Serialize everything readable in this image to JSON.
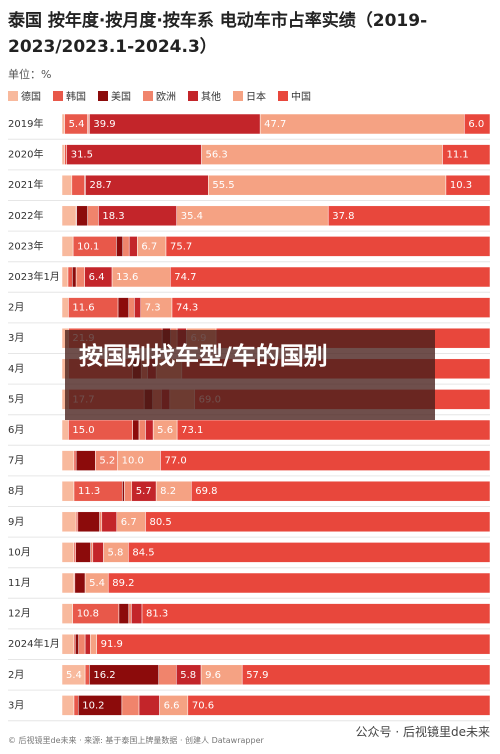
{
  "chart_data": {
    "type": "stacked-bar-100",
    "title": "泰国 按年度·按月度·按车系 电动车市占率实绩（2019-2023/2023.1-2024.3）",
    "subtitle": "单位：%",
    "categories": [
      "2019年",
      "2020年",
      "2021年",
      "2022年",
      "2023年",
      "2023年1月",
      "2月",
      "3月",
      "4月",
      "5月",
      "6月",
      "7月",
      "8月",
      "9月",
      "10月",
      "11月",
      "12月",
      "2024年1月",
      "2月",
      "3月"
    ],
    "series": [
      {
        "name": "德国",
        "color": "#f8b99d",
        "values": [
          0.6,
          0.6,
          2.3,
          3.3,
          2.6,
          1.4,
          1.5,
          1.5,
          1.5,
          1.5,
          1.5,
          2.8,
          2.8,
          3.3,
          2.8,
          2.8,
          2.5,
          2.8,
          5.4,
          2.8
        ],
        "value_labels": [
          null,
          null,
          null,
          null,
          null,
          null,
          null,
          null,
          null,
          null,
          null,
          null,
          null,
          null,
          null,
          null,
          null,
          null,
          "5.4",
          null
        ]
      },
      {
        "name": "韩国",
        "color": "#e8584a",
        "values": [
          5.4,
          0.5,
          3.0,
          0.1,
          10.1,
          1.0,
          11.6,
          21.9,
          15.0,
          17.7,
          15.0,
          0.5,
          11.3,
          0.4,
          0.4,
          0.2,
          10.8,
          0.3,
          1.0,
          1.0
        ],
        "value_labels": [
          "5.4",
          null,
          null,
          null,
          "10.1",
          null,
          "11.6",
          "21.9",
          null,
          "17.7",
          "15.0",
          null,
          "11.3",
          null,
          null,
          null,
          "10.8",
          null,
          null,
          null
        ]
      },
      {
        "name": "美国",
        "color": "#8c0b0b",
        "values": [
          0.1,
          0,
          0.2,
          2.6,
          1.5,
          0.9,
          2.5,
          2.0,
          2.0,
          2.0,
          1.5,
          4.5,
          0.5,
          5.1,
          3.5,
          2.4,
          2.3,
          0.8,
          16.2,
          10.2
        ],
        "value_labels": [
          null,
          null,
          null,
          null,
          null,
          null,
          null,
          null,
          null,
          null,
          null,
          null,
          null,
          null,
          null,
          null,
          null,
          null,
          "16.2",
          "10.2"
        ]
      },
      {
        "name": "欧洲",
        "color": "#f0846c",
        "values": [
          0.3,
          0,
          0,
          2.5,
          1.5,
          2.0,
          1.3,
          1.5,
          1.5,
          2.0,
          1.5,
          5.2,
          1.7,
          0.5,
          0.5,
          0,
          0.6,
          1.5,
          4.1,
          4.0
        ],
        "value_labels": [
          null,
          null,
          null,
          null,
          null,
          null,
          null,
          null,
          null,
          null,
          null,
          "5.2",
          null,
          null,
          null,
          null,
          null,
          null,
          null,
          null
        ]
      },
      {
        "name": "其他",
        "color": "#c3252a",
        "values": [
          39.9,
          31.5,
          28.7,
          18.3,
          1.9,
          6.4,
          1.5,
          2.2,
          2.0,
          2.0,
          1.8,
          0,
          5.7,
          3.5,
          2.5,
          0,
          2.5,
          1.2,
          5.8,
          4.8
        ],
        "value_labels": [
          "39.9",
          "31.5",
          "28.7",
          "18.3",
          null,
          "6.4",
          null,
          null,
          null,
          null,
          null,
          null,
          "5.7",
          null,
          null,
          null,
          null,
          null,
          "5.8",
          null
        ]
      },
      {
        "name": "日本",
        "color": "#f5a283",
        "values": [
          47.7,
          56.3,
          55.5,
          35.4,
          6.7,
          13.6,
          7.3,
          6.9,
          6.0,
          5.8,
          5.6,
          10.0,
          8.2,
          6.7,
          5.8,
          5.4,
          0,
          1.5,
          9.6,
          6.6
        ],
        "value_labels": [
          "47.7",
          "56.3",
          "55.5",
          "35.4",
          "6.7",
          "13.6",
          "7.3",
          "6.9",
          null,
          null,
          "5.6",
          "10.0",
          "8.2",
          "6.7",
          "5.8",
          "5.4",
          null,
          null,
          "9.6",
          "6.6"
        ]
      },
      {
        "name": "中国",
        "color": "#e8473c",
        "values": [
          6.0,
          11.1,
          10.3,
          37.8,
          75.7,
          74.7,
          74.3,
          64.0,
          72.0,
          69.0,
          73.1,
          77.0,
          69.8,
          80.5,
          84.5,
          89.2,
          81.3,
          91.9,
          57.9,
          70.6
        ],
        "value_labels": [
          "6.0",
          "11.1",
          "10.3",
          "37.8",
          "75.7",
          "74.7",
          "74.3",
          null,
          null,
          "69.0",
          "73.1",
          "77.0",
          "69.8",
          "80.5",
          "84.5",
          "89.2",
          "81.3",
          "91.9",
          "57.9",
          "70.6"
        ]
      }
    ],
    "footer": "© 后视镜里de未来 · 来源: 基于泰国上牌量数据 · 创建人 Datawrapper"
  },
  "overlay": {
    "text": "按国别找车型/车的国别"
  },
  "watermark": {
    "text": "公众号 · 后视镜里de未来"
  }
}
